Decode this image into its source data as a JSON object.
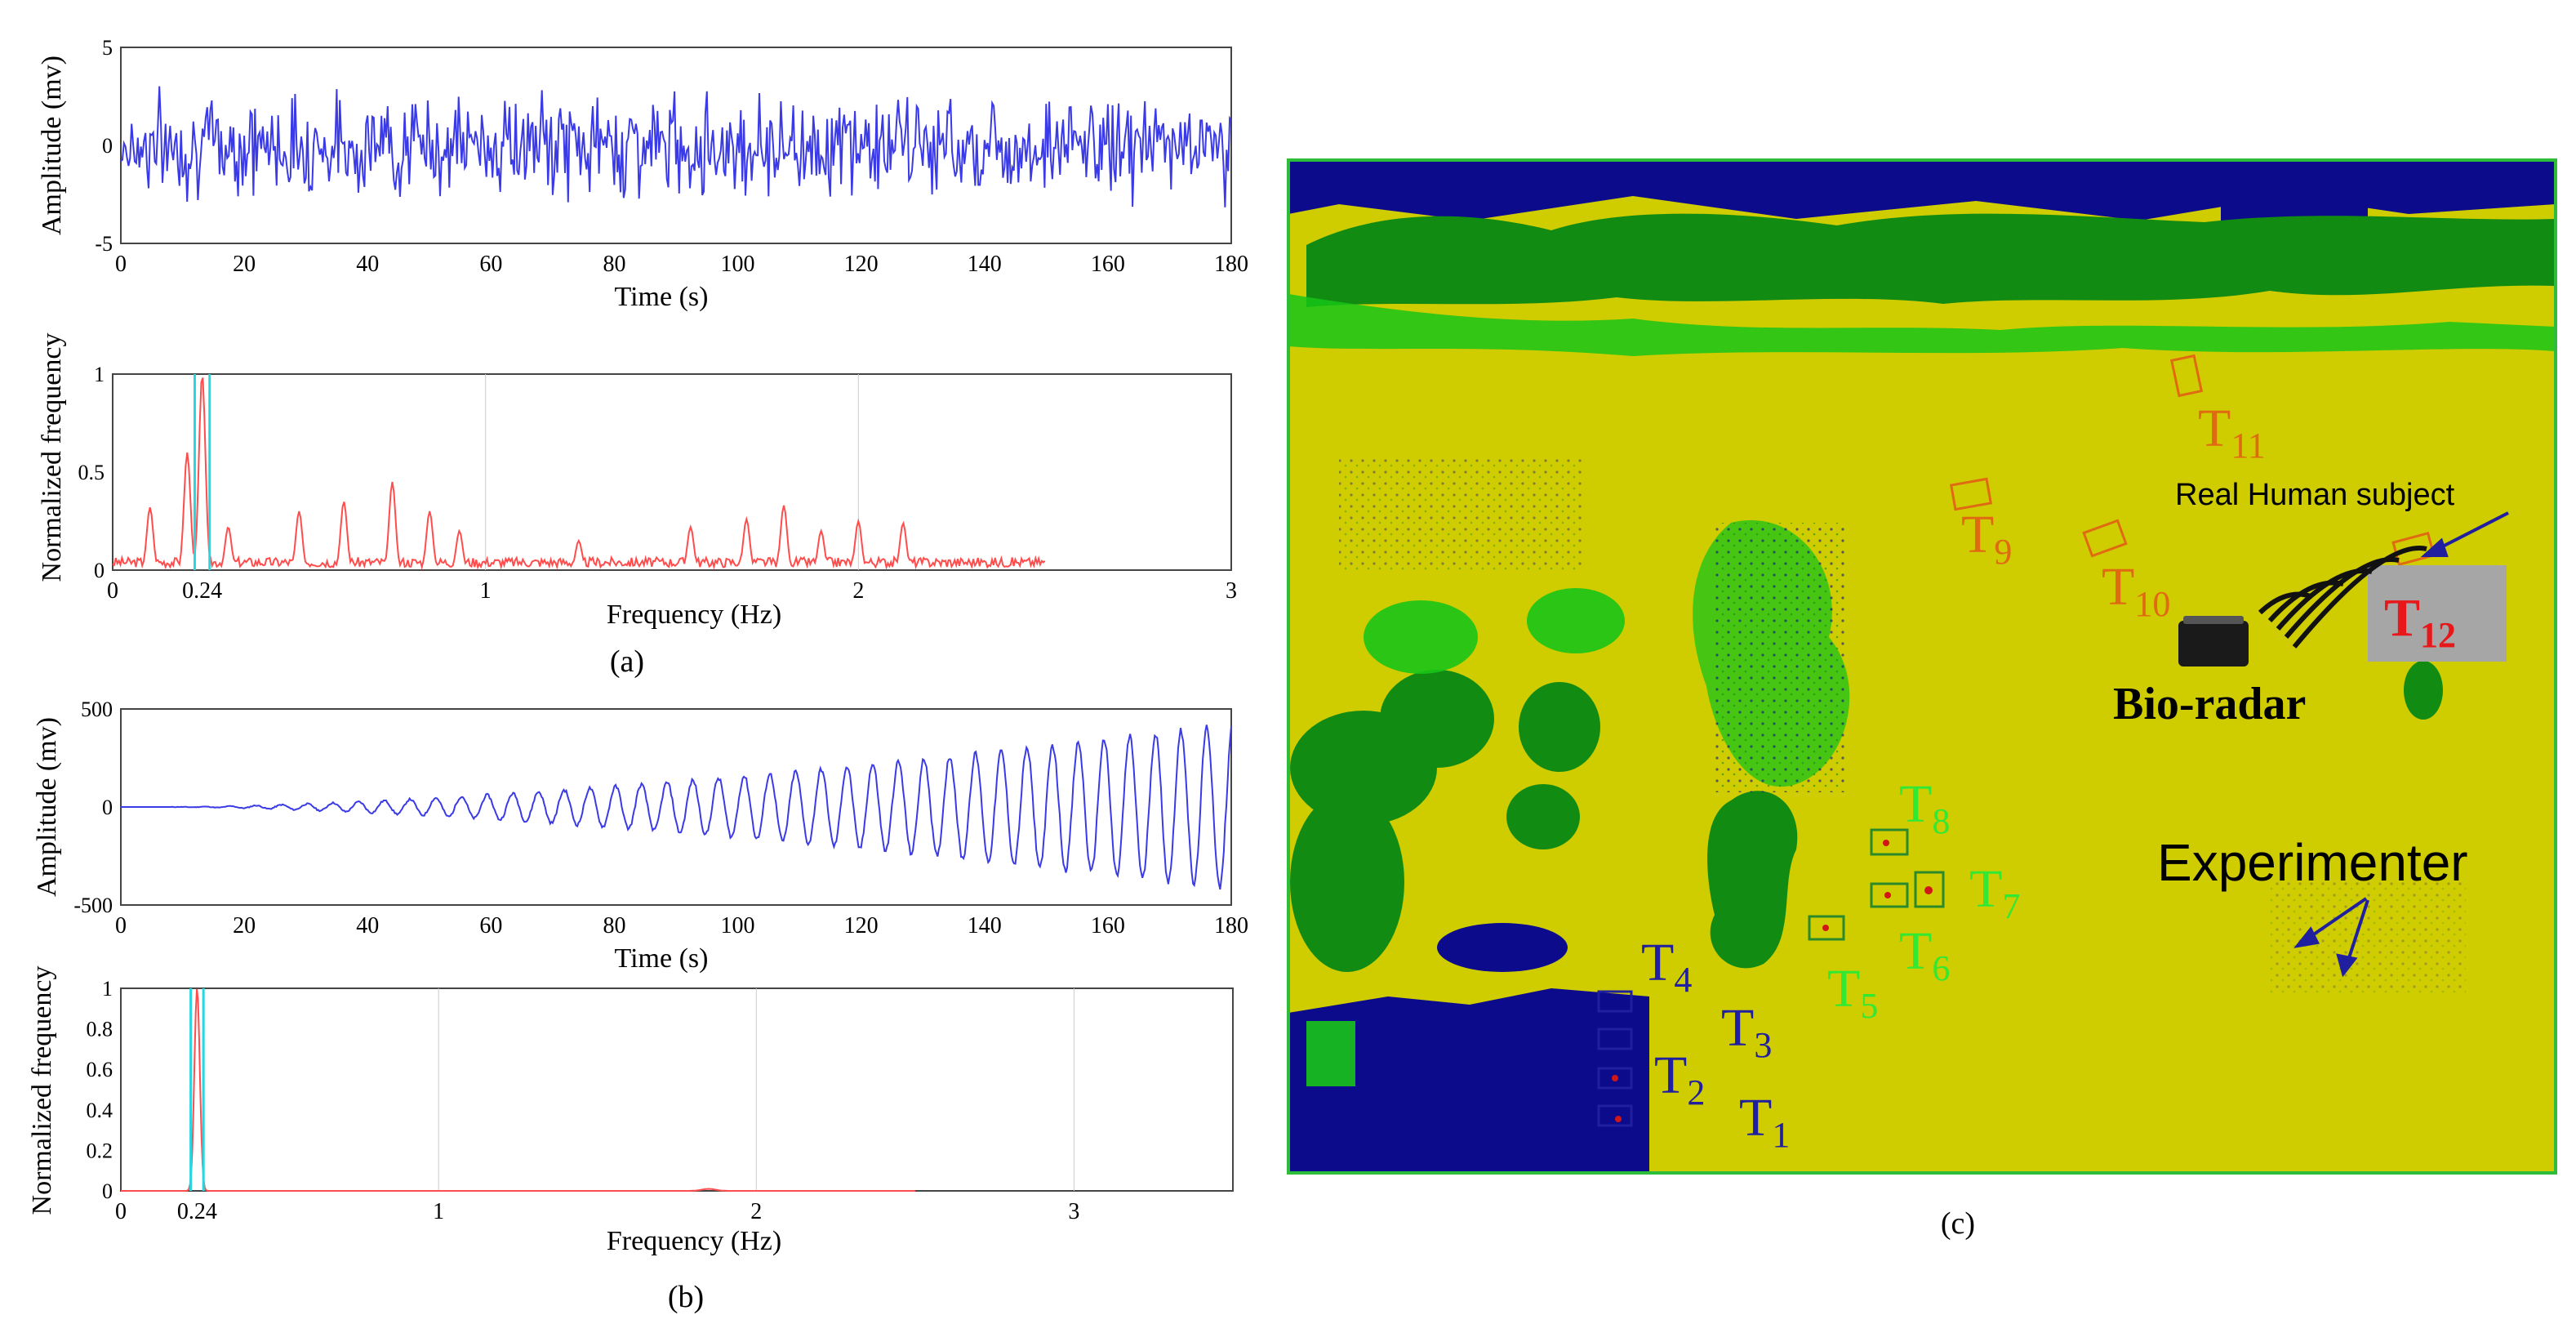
{
  "panel_labels": [
    "(a)",
    "(b)",
    "(c)"
  ],
  "chart_data": [
    {
      "id": "a-time",
      "type": "line",
      "xlabel": "Time (s)",
      "ylabel": "Amplitude (mv)",
      "xlim": [
        0,
        180
      ],
      "ylim": [
        -5,
        5
      ],
      "xticks": [
        "0",
        "20",
        "40",
        "60",
        "80",
        "100",
        "120",
        "140",
        "160",
        "180"
      ],
      "yticks": [
        "5",
        "0",
        "-5"
      ],
      "series_color": "#3a3ae6",
      "signal": {
        "kind": "noise",
        "std": 1.2,
        "max_abs": 4.8,
        "n": 720
      }
    },
    {
      "id": "a-freq",
      "type": "line",
      "xlabel": "Frequency (Hz)",
      "ylabel": "Normalized frequency",
      "xlim": [
        0,
        3
      ],
      "ylim": [
        0,
        1
      ],
      "xticks": [
        "0",
        "0.24",
        "1",
        "2",
        "3"
      ],
      "yticks": [
        "1",
        "0.5",
        "0"
      ],
      "series_color": "#ff4d4d",
      "marker_color": "#29d6e0",
      "peak_hz": 0.24,
      "peaks": [
        {
          "x": 0.1,
          "y": 0.32
        },
        {
          "x": 0.2,
          "y": 0.6
        },
        {
          "x": 0.24,
          "y": 1.0
        },
        {
          "x": 0.31,
          "y": 0.22
        },
        {
          "x": 0.5,
          "y": 0.3
        },
        {
          "x": 0.62,
          "y": 0.35
        },
        {
          "x": 0.75,
          "y": 0.45
        },
        {
          "x": 0.85,
          "y": 0.3
        },
        {
          "x": 0.93,
          "y": 0.2
        },
        {
          "x": 1.25,
          "y": 0.15
        },
        {
          "x": 1.55,
          "y": 0.22
        },
        {
          "x": 1.7,
          "y": 0.26
        },
        {
          "x": 1.8,
          "y": 0.33
        },
        {
          "x": 1.9,
          "y": 0.2
        },
        {
          "x": 2.0,
          "y": 0.25
        },
        {
          "x": 2.12,
          "y": 0.24
        }
      ],
      "floor_level": 0.05,
      "spectrum_end_hz": 2.5
    },
    {
      "id": "b-time",
      "type": "line",
      "xlabel": "Time (s)",
      "ylabel": "Amplitude (mv)",
      "xlim": [
        0,
        180
      ],
      "ylim": [
        -500,
        500
      ],
      "xticks": [
        "0",
        "20",
        "40",
        "60",
        "80",
        "100",
        "120",
        "140",
        "160",
        "180"
      ],
      "yticks": [
        "500",
        "0",
        "-500"
      ],
      "series_color": "#3a3ae6",
      "signal": {
        "kind": "chirp",
        "freq_hz": 0.24,
        "start_s": 8,
        "max_amplitude": 420,
        "n": 900
      }
    },
    {
      "id": "b-freq",
      "type": "line",
      "xlabel": "Frequency (Hz)",
      "ylabel": "Normalized frequency",
      "xlim": [
        0,
        3.5
      ],
      "ylim": [
        0,
        1
      ],
      "xticks": [
        "0",
        "0.24",
        "1",
        "2",
        "3"
      ],
      "yticks": [
        "1",
        "0.8",
        "0.6",
        "0.4",
        "0.2",
        "0"
      ],
      "series_color": "#ff4d4d",
      "marker_color": "#29d6e0",
      "peak_hz": 0.24
    }
  ],
  "map": {
    "colors": {
      "background": "#cfcc00",
      "vegetation": "#128b12",
      "light_vegetation": "#18c418",
      "water": "#0b0b8c",
      "border": "#2ebd3a",
      "radar": "#1a1a1a",
      "subject_box": "#a6a6a6"
    },
    "targets": [
      {
        "label": "T",
        "sub": "1",
        "color": "#1f1fa0"
      },
      {
        "label": "T",
        "sub": "2",
        "color": "#1f1fa0"
      },
      {
        "label": "T",
        "sub": "3",
        "color": "#1f1fa0"
      },
      {
        "label": "T",
        "sub": "4",
        "color": "#1f1fa0"
      },
      {
        "label": "T",
        "sub": "5",
        "color": "#33e833"
      },
      {
        "label": "T",
        "sub": "6",
        "color": "#33e833"
      },
      {
        "label": "T",
        "sub": "7",
        "color": "#33e833"
      },
      {
        "label": "T",
        "sub": "8",
        "color": "#33e833"
      },
      {
        "label": "T",
        "sub": "9",
        "color": "#e06a12"
      },
      {
        "label": "T",
        "sub": "10",
        "color": "#e06a12"
      },
      {
        "label": "T",
        "sub": "11",
        "color": "#e06a12"
      },
      {
        "label": "T",
        "sub": "12",
        "color": "#e8171a"
      }
    ],
    "annotations": {
      "bio_radar": "Bio-radar",
      "real_human_subject": "Real Human subject",
      "experimenter": "Experimenter"
    }
  }
}
